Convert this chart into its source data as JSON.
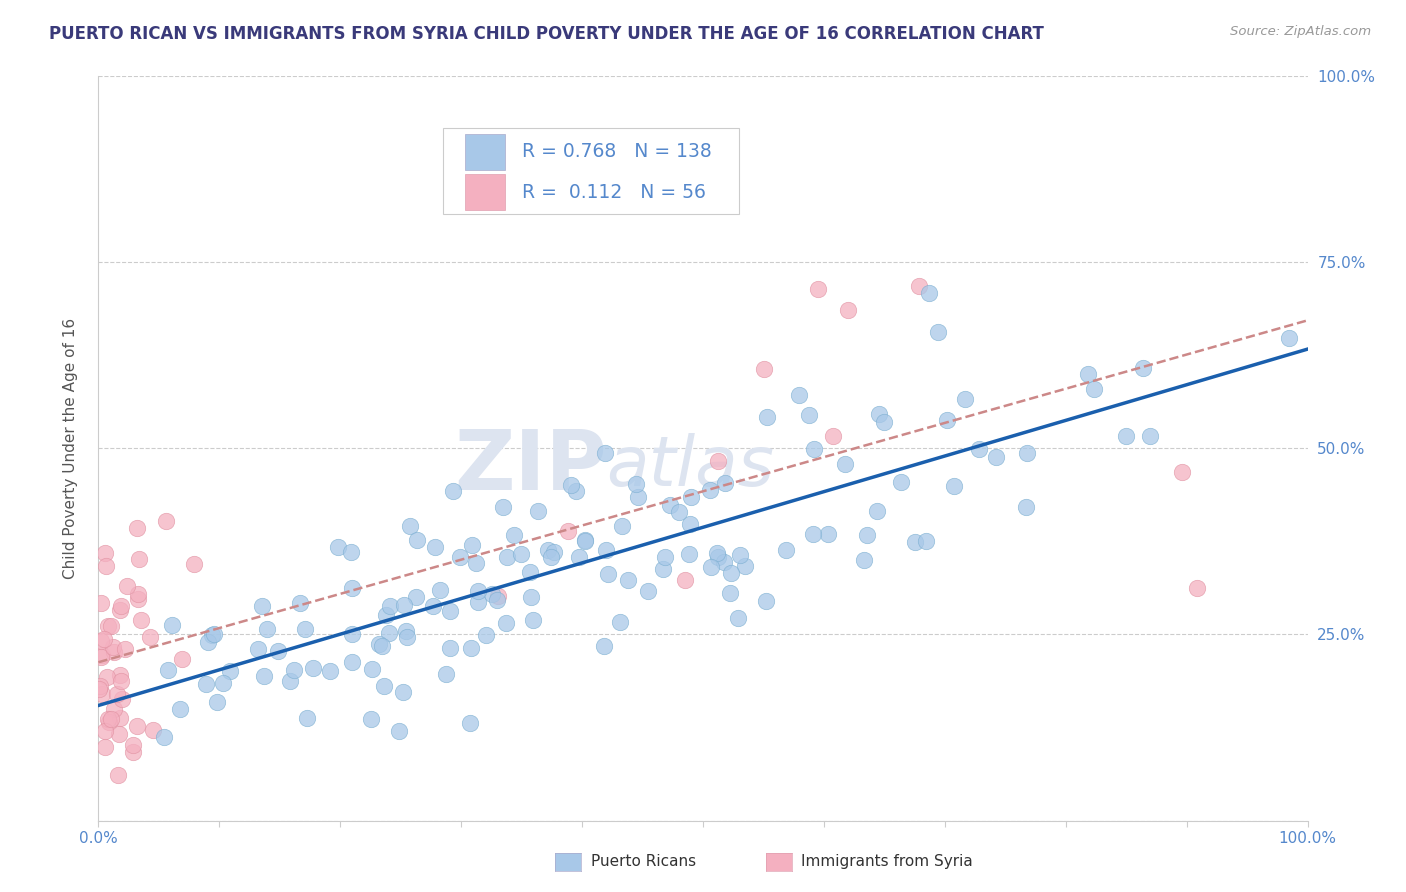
{
  "title": "PUERTO RICAN VS IMMIGRANTS FROM SYRIA CHILD POVERTY UNDER THE AGE OF 16 CORRELATION CHART",
  "source": "Source: ZipAtlas.com",
  "ylabel": "Child Poverty Under the Age of 16",
  "r_pr": 0.768,
  "n_pr": 138,
  "r_sy": 0.112,
  "n_sy": 56,
  "color_pr": "#a8c8e8",
  "color_pr_edge": "#7aaed0",
  "color_sy": "#f4b0c0",
  "color_sy_edge": "#e090a0",
  "line_color_pr": "#1a5fad",
  "line_color_sy": "#cc8888",
  "title_color": "#3a3a7a",
  "tick_color": "#5588cc",
  "background_color": "#ffffff",
  "watermark_color": "#dde4f0",
  "ylabel_color": "#555555"
}
